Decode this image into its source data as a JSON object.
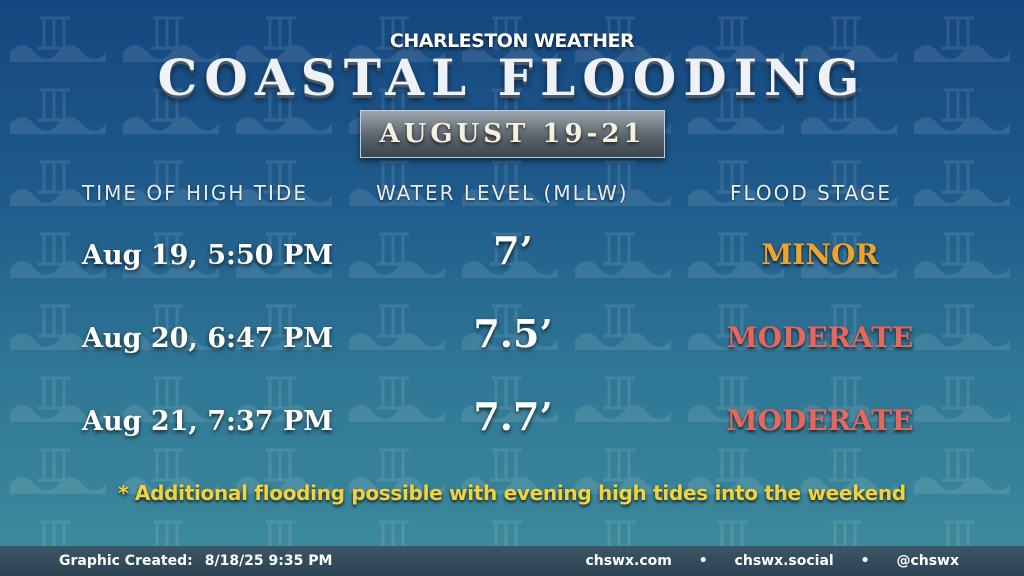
{
  "header": {
    "brand": "CHARLESTON WEATHER",
    "title": "COASTAL FLOODING",
    "date_range": "AUGUST 19-21"
  },
  "table": {
    "columns": [
      "TIME OF HIGH TIDE",
      "WATER LEVEL (MLLW)",
      "FLOOD STAGE"
    ],
    "rows": [
      {
        "time": "Aug 19, 5:50 PM",
        "level": "7’",
        "stage": "MINOR",
        "stage_color": "#f0a22e"
      },
      {
        "time": "Aug 20, 6:47 PM",
        "level": "7.5’",
        "stage": "MODERATE",
        "stage_color": "#e8665b"
      },
      {
        "time": "Aug 21, 7:37 PM",
        "level": "7.7’",
        "stage": "MODERATE",
        "stage_color": "#e8665b"
      }
    ]
  },
  "footnote": "* Additional flooding possible with evening high tides into the weekend",
  "footer": {
    "created_label": "Graphic Created:",
    "created_value": "8/18/25 9:35 PM",
    "links": [
      "chswx.com",
      "chswx.social",
      "@chswx"
    ],
    "separator": "•"
  },
  "colors": {
    "footnote": "#f4d23b",
    "minor": "#f0a22e",
    "moderate": "#e8665b"
  }
}
